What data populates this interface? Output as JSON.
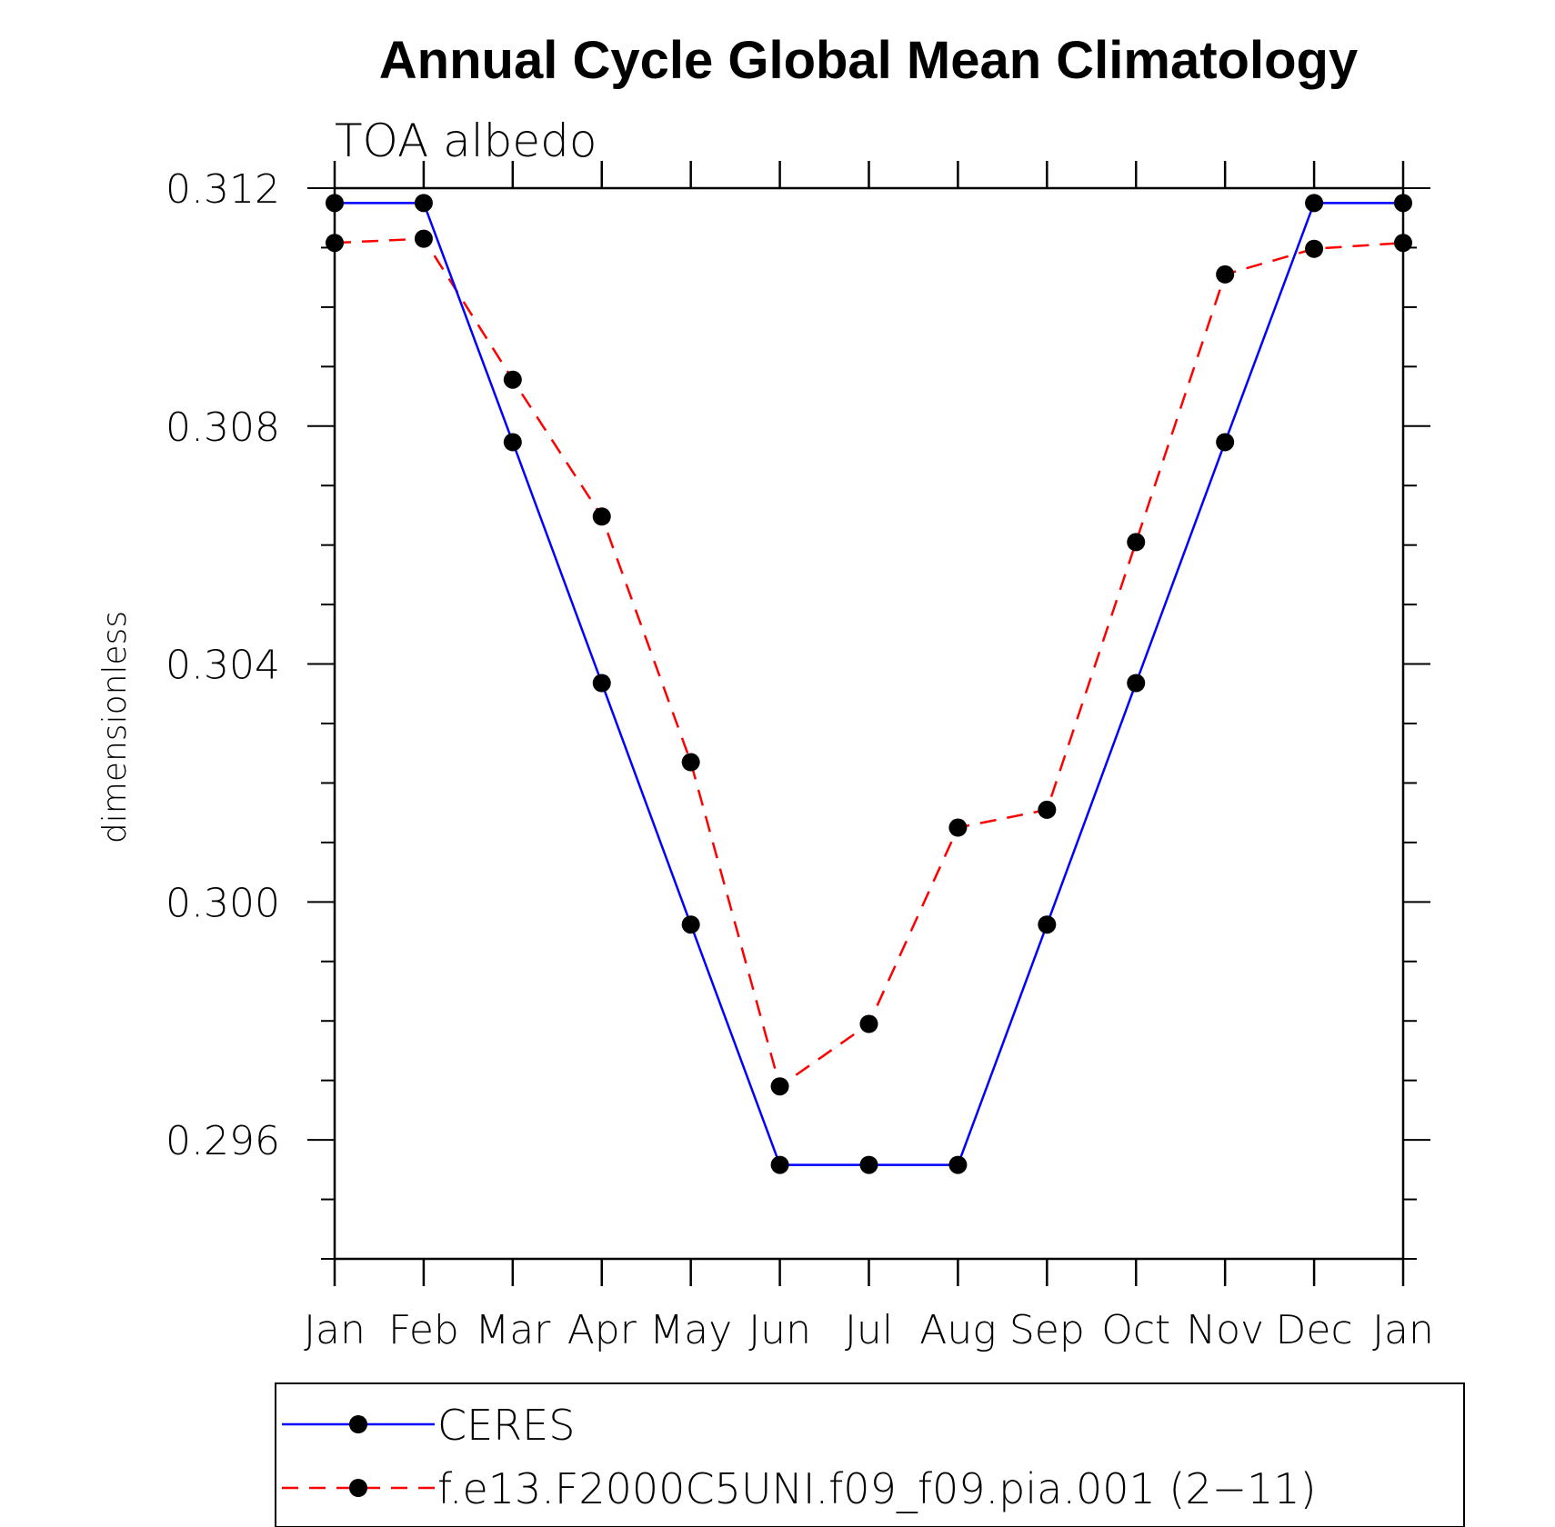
{
  "chart_data": {
    "type": "line",
    "title": "Annual Cycle Global Mean Climatology",
    "subtitle": "TOA albedo",
    "ylabel": "dimensionless",
    "xlabel": "",
    "categories": [
      "Jan",
      "Feb",
      "Mar",
      "Apr",
      "May",
      "Jun",
      "Jul",
      "Aug",
      "Sep",
      "Oct",
      "Nov",
      "Dec",
      "Jan"
    ],
    "ylim": [
      0.294,
      0.312
    ],
    "yticks": [
      "0.312",
      "0.308",
      "0.304",
      "0.300",
      "0.296"
    ],
    "ytick_values": [
      0.312,
      0.308,
      0.304,
      0.3,
      0.296
    ],
    "grid": false,
    "legend_position": "bottom",
    "series": [
      {
        "name": "CERES",
        "color": "#0000ff",
        "dash": "solid",
        "marker": "filled-circle",
        "values": [
          0.31175,
          0.31175,
          0.30773,
          0.30368,
          0.29962,
          0.29558,
          0.29558,
          0.29558,
          0.29962,
          0.30368,
          0.30773,
          0.31175,
          0.31175
        ]
      },
      {
        "name": "f.e13.F2000C5UNI.f09_f09.pia.001 (2−11)",
        "color": "#ff0000",
        "dash": "dashed",
        "marker": "filled-circle",
        "values": [
          0.31108,
          0.31115,
          0.30878,
          0.30648,
          0.30235,
          0.2969,
          0.29795,
          0.30125,
          0.30155,
          0.30605,
          0.31055,
          0.31098,
          0.31108
        ]
      }
    ]
  }
}
